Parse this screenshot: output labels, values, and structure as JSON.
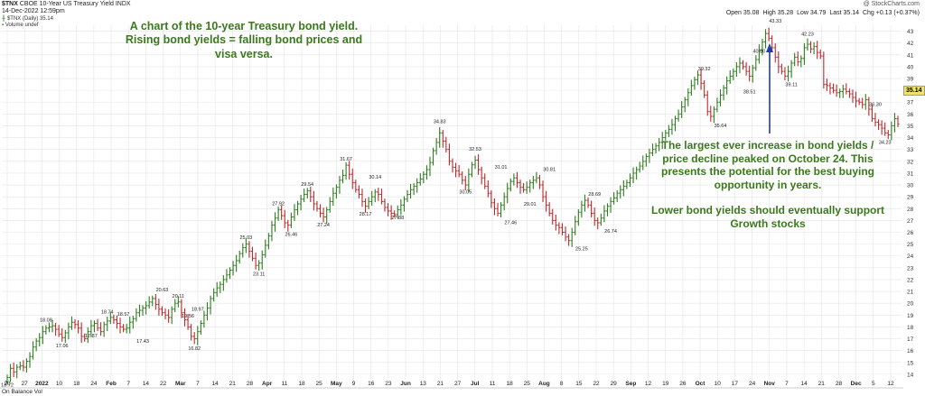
{
  "header": {
    "symbol": "$TNX",
    "name": "CBOE 10-Year US Treasury Yield",
    "exchange": "INDX",
    "date": "14-Dec-2022 12:59pm",
    "copyright": "@ StockCharts.com",
    "open_label": "Open",
    "open": "35.08",
    "high_label": "High",
    "high": "35.28",
    "low_label": "Low",
    "low": "34.79",
    "last_label": "Last",
    "last": "35.14",
    "chg_label": "Chg",
    "chg": "+0.13 (+0.37%)",
    "legend_main": "$TNX (Daily) 35.14",
    "legend_volume": "Volume undef",
    "price_box": "35.14",
    "bottom_panel": "On Balance Vol"
  },
  "annotations": {
    "top": [
      "A chart of the 10-year Treasury bond yield.",
      "Rising bond yields = falling bond prices and",
      "visa versa."
    ],
    "right1": [
      "The largest ever increase in bond yields /",
      "price decline peaked on October 24.  This",
      "presents the potential for the best buying",
      "opportunity in years."
    ],
    "right2": [
      "Lower bond yields should eventually support",
      "Growth stocks"
    ]
  },
  "colors": {
    "up": "#2e7d1e",
    "down": "#c0282a",
    "grid": "#e4e4e4",
    "annot": "#3a7a1c",
    "arrow": "#1a3fb0"
  },
  "chart_data": {
    "type": "ohlc",
    "yaxis": {
      "range": [
        13,
        43.5
      ],
      "ticks": [
        14,
        15,
        16,
        17,
        18,
        19,
        20,
        21,
        22,
        23,
        24,
        25,
        26,
        27,
        28,
        29,
        30,
        31,
        32,
        33,
        34,
        35,
        36,
        37,
        38,
        39,
        40,
        41,
        42,
        43
      ],
      "side": "right"
    },
    "xaxis_labels": [
      "20",
      "27",
      "2022",
      "10",
      "18",
      "24",
      "Feb",
      "7",
      "14",
      "22",
      "Mar",
      "7",
      "14",
      "21",
      "28",
      "Apr",
      "11",
      "18",
      "25",
      "May",
      "9",
      "16",
      "23",
      "Jun",
      "13",
      "21",
      "27",
      "Jul",
      "11",
      "18",
      "25",
      "Aug",
      "8",
      "15",
      "22",
      "29",
      "Sep",
      "12",
      "19",
      "26",
      "Oct",
      "10",
      "17",
      "24",
      "Nov",
      "7",
      "14",
      "21",
      "28",
      "Dec",
      "5",
      "12"
    ],
    "grid": true,
    "closes": [
      13.72,
      14.5,
      14.2,
      14.6,
      14.7,
      14.6,
      15.1,
      15.5,
      16.3,
      16.8,
      17.1,
      17.6,
      17.9,
      18.0,
      18.1,
      17.8,
      17.4,
      17.1,
      17.5,
      18.0,
      18.4,
      18.2,
      17.9,
      17.2,
      17.0,
      17.6,
      18.1,
      18.3,
      17.9,
      17.6,
      18.2,
      18.5,
      18.8,
      18.6,
      18.3,
      18.0,
      17.8,
      17.9,
      18.4,
      18.7,
      19.2,
      19.4,
      19.6,
      19.8,
      20.1,
      20.4,
      19.9,
      19.5,
      19.2,
      19.0,
      18.8,
      19.5,
      20.0,
      20.11,
      19.2,
      18.6,
      18.0,
      17.2,
      17.0,
      17.6,
      18.3,
      19.0,
      19.6,
      20.4,
      20.9,
      21.3,
      21.6,
      22.0,
      22.4,
      22.8,
      23.2,
      23.6,
      24.2,
      24.7,
      25.0,
      24.4,
      23.8,
      23.2,
      23.4,
      24.1,
      24.9,
      25.7,
      26.6,
      27.2,
      27.92,
      27.4,
      26.8,
      26.6,
      27.3,
      27.9,
      28.4,
      28.8,
      29.2,
      29.5,
      29.0,
      28.4,
      28.0,
      27.6,
      27.3,
      27.9,
      28.6,
      29.3,
      29.8,
      30.4,
      30.8,
      31.67,
      30.9,
      30.2,
      29.6,
      29.2,
      28.6,
      28.2,
      28.6,
      29.0,
      29.4,
      29.2,
      28.6,
      28.1,
      27.8,
      27.6,
      27.5,
      27.9,
      28.3,
      28.8,
      29.2,
      29.6,
      29.9,
      30.2,
      30.5,
      30.9,
      31.3,
      31.9,
      32.9,
      33.6,
      34.4,
      33.7,
      33.0,
      32.0,
      31.5,
      31.2,
      30.9,
      30.4,
      30.0,
      30.9,
      31.7,
      32.1,
      31.3,
      30.6,
      29.9,
      29.3,
      28.5,
      28.0,
      27.6,
      28.3,
      29.0,
      29.7,
      30.3,
      30.6,
      30.2,
      29.8,
      29.6,
      29.8,
      30.2,
      30.4,
      30.6,
      30.0,
      29.0,
      28.3,
      27.6,
      27.0,
      26.6,
      26.4,
      26.0,
      25.6,
      25.3,
      26.0,
      26.9,
      27.7,
      28.3,
      28.7,
      28.3,
      27.6,
      27.0,
      26.8,
      27.2,
      27.8,
      28.2,
      28.6,
      28.9,
      29.3,
      29.6,
      29.9,
      30.2,
      30.6,
      31.0,
      31.3,
      31.6,
      32.0,
      32.4,
      32.7,
      33.0,
      33.3,
      33.6,
      34.0,
      34.4,
      34.7,
      35.1,
      35.6,
      36.0,
      36.6,
      37.2,
      37.8,
      38.4,
      38.9,
      39.3,
      38.6,
      37.6,
      36.2,
      35.8,
      36.4,
      37.0,
      37.6,
      38.2,
      38.8,
      39.2,
      39.6,
      40.0,
      40.3,
      40.0,
      39.6,
      39.2,
      39.9,
      40.6,
      41.4,
      42.1,
      42.8,
      42.4,
      41.6,
      40.8,
      40.0,
      39.6,
      39.2,
      39.6,
      40.3,
      40.8,
      40.4,
      40.7,
      41.6,
      41.9,
      41.5,
      41.7,
      41.2,
      40.9,
      38.5,
      38.4,
      38.2,
      38.0,
      37.8,
      37.9,
      38.1,
      37.9,
      37.7,
      37.4,
      37.1,
      37.0,
      36.8,
      37.2,
      36.4,
      35.6,
      35.3,
      35.1,
      34.8,
      34.4,
      34.23,
      35.0,
      35.6,
      35.14
    ],
    "labels": [
      {
        "value": 13.72,
        "index": 0,
        "pos": "below"
      },
      {
        "value": 18.08,
        "index": 12,
        "pos": "above"
      },
      {
        "value": 17.06,
        "index": 17,
        "pos": "below"
      },
      {
        "value": 18.74,
        "index": 31,
        "pos": "above"
      },
      {
        "value": 17.87,
        "index": 26,
        "pos": "below"
      },
      {
        "value": 18.57,
        "index": 36,
        "pos": "above"
      },
      {
        "value": 17.43,
        "index": 42,
        "pos": "below"
      },
      {
        "value": 20.63,
        "index": 48,
        "pos": "above"
      },
      {
        "value": 20.11,
        "index": 53,
        "pos": "above"
      },
      {
        "value": 19.56,
        "index": 56,
        "pos": "below"
      },
      {
        "value": 18.97,
        "index": 59,
        "pos": "above"
      },
      {
        "value": 16.82,
        "index": 58,
        "pos": "below"
      },
      {
        "value": 25.03,
        "index": 74,
        "pos": "above"
      },
      {
        "value": 23.11,
        "index": 78,
        "pos": "below"
      },
      {
        "value": 27.92,
        "index": 84,
        "pos": "above"
      },
      {
        "value": 26.46,
        "index": 88,
        "pos": "below"
      },
      {
        "value": 29.54,
        "index": 93,
        "pos": "above"
      },
      {
        "value": 27.24,
        "index": 98,
        "pos": "below"
      },
      {
        "value": 31.67,
        "index": 105,
        "pos": "above"
      },
      {
        "value": 28.17,
        "index": 111,
        "pos": "below"
      },
      {
        "value": 30.14,
        "index": 114,
        "pos": "above"
      },
      {
        "value": 27.88,
        "index": 121,
        "pos": "below"
      },
      {
        "value": 34.83,
        "index": 134,
        "pos": "above"
      },
      {
        "value": 30.05,
        "index": 142,
        "pos": "below"
      },
      {
        "value": 32.53,
        "index": 145,
        "pos": "above"
      },
      {
        "value": 31.01,
        "index": 153,
        "pos": "above"
      },
      {
        "value": 27.46,
        "index": 156,
        "pos": "below"
      },
      {
        "value": 29.01,
        "index": 162,
        "pos": "below"
      },
      {
        "value": 30.81,
        "index": 168,
        "pos": "above"
      },
      {
        "value": 25.25,
        "index": 178,
        "pos": "below"
      },
      {
        "value": 28.69,
        "index": 182,
        "pos": "above"
      },
      {
        "value": 26.74,
        "index": 187,
        "pos": "below"
      },
      {
        "value": 39.32,
        "index": 216,
        "pos": "above"
      },
      {
        "value": 35.64,
        "index": 221,
        "pos": "below"
      },
      {
        "value": 40.8,
        "index": 233,
        "pos": "above"
      },
      {
        "value": 38.51,
        "index": 230,
        "pos": "below"
      },
      {
        "value": 43.33,
        "index": 238,
        "pos": "above"
      },
      {
        "value": 39.11,
        "index": 243,
        "pos": "below"
      },
      {
        "value": 42.23,
        "index": 248,
        "pos": "above"
      },
      {
        "value": 36.3,
        "index": 269,
        "pos": "above"
      },
      {
        "value": 34.23,
        "index": 272,
        "pos": "below"
      }
    ]
  }
}
